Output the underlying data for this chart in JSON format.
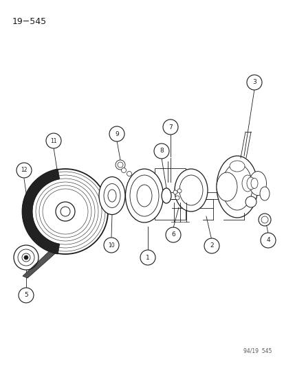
{
  "title_text": "19−545",
  "footer_text": "94/19  545",
  "bg_color": "#ffffff",
  "line_color": "#1a1a1a",
  "fig_width": 4.14,
  "fig_height": 5.33,
  "dpi": 100
}
